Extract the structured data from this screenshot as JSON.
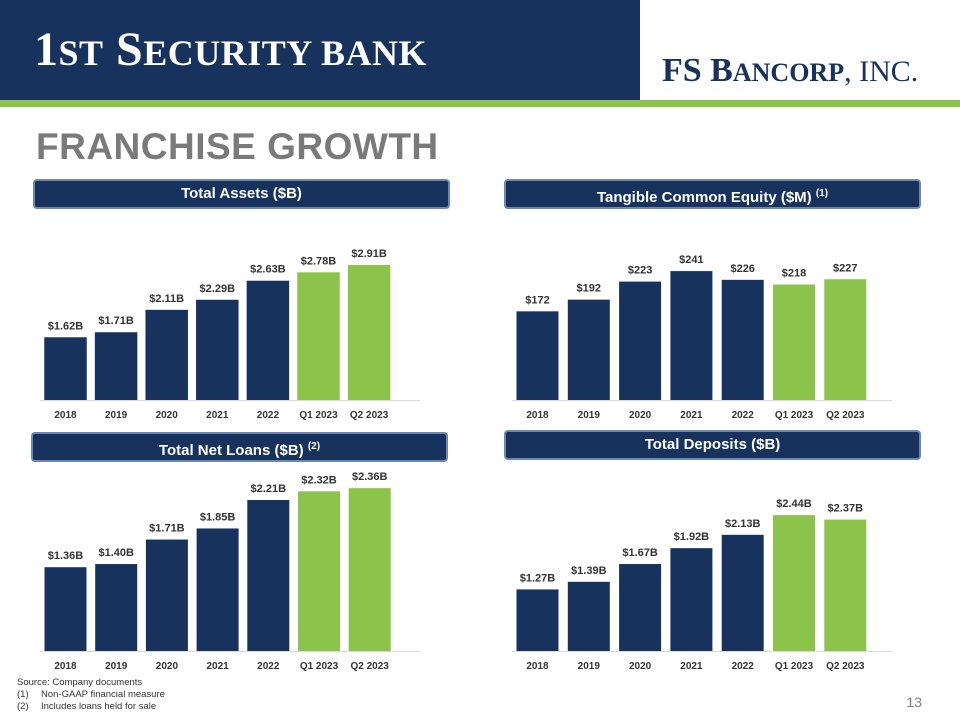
{
  "header": {
    "bank_logo_big1": "1",
    "bank_logo_small1": "ST",
    "bank_logo_big2": " S",
    "bank_logo_small2": "ECURITY",
    "bank_logo_small3": " BANK",
    "fs_logo_big1": "FS B",
    "fs_logo_small1": "ANCORP",
    "fs_logo_rest": ", INC.",
    "colors": {
      "navy": "#17325c",
      "green": "#8cc34a",
      "border": "#6f88b0"
    }
  },
  "page_title": "FRANCHISE GROWTH",
  "chart_data": [
    {
      "type": "bar",
      "title": "Total Assets ($B)",
      "title_footnote": "",
      "categories": [
        "2018",
        "2019",
        "2020",
        "2021",
        "2022",
        "Q1 2023",
        "Q2 2023"
      ],
      "values": [
        1.62,
        1.71,
        2.11,
        2.29,
        2.63,
        2.78,
        2.91
      ],
      "labels": [
        "$1.62B",
        "$1.71B",
        "$2.11B",
        "$2.29B",
        "$2.63B",
        "$2.78B",
        "$2.91B"
      ],
      "colors": [
        "#17325c",
        "#17325c",
        "#17325c",
        "#17325c",
        "#17325c",
        "#8cc34a",
        "#8cc34a"
      ],
      "ylim": [
        0.5,
        3.0
      ],
      "xlabel": "",
      "ylabel": ""
    },
    {
      "type": "bar",
      "title": "Tangible Common Equity ($M)",
      "title_footnote": "(1)",
      "categories": [
        "2018",
        "2019",
        "2020",
        "2021",
        "2022",
        "Q1 2023",
        "Q2 2023"
      ],
      "values": [
        172,
        192,
        223,
        241,
        226,
        218,
        227
      ],
      "labels": [
        "$172",
        "$192",
        "$223",
        "$241",
        "$226",
        "$218",
        "$227"
      ],
      "colors": [
        "#17325c",
        "#17325c",
        "#17325c",
        "#17325c",
        "#17325c",
        "#8cc34a",
        "#8cc34a"
      ],
      "ylim": [
        20,
        260
      ],
      "xlabel": "",
      "ylabel": ""
    },
    {
      "type": "bar",
      "title": "Total Net Loans ($B)",
      "title_footnote": "(2)",
      "categories": [
        "2018",
        "2019",
        "2020",
        "2021",
        "2022",
        "Q1 2023",
        "Q2 2023"
      ],
      "values": [
        1.36,
        1.4,
        1.71,
        1.85,
        2.21,
        2.32,
        2.36
      ],
      "labels": [
        "$1.36B",
        "$1.40B",
        "$1.71B",
        "$1.85B",
        "$2.21B",
        "$2.32B",
        "$2.36B"
      ],
      "colors": [
        "#17325c",
        "#17325c",
        "#17325c",
        "#17325c",
        "#17325c",
        "#8cc34a",
        "#8cc34a"
      ],
      "ylim": [
        0.3,
        2.4
      ],
      "xlabel": "",
      "ylabel": ""
    },
    {
      "type": "bar",
      "title": "Total Deposits ($B)",
      "title_footnote": "",
      "categories": [
        "2018",
        "2019",
        "2020",
        "2021",
        "2022",
        "Q1 2023",
        "Q2 2023"
      ],
      "values": [
        1.27,
        1.39,
        1.67,
        1.92,
        2.13,
        2.44,
        2.37
      ],
      "labels": [
        "$1.27B",
        "$1.39B",
        "$1.67B",
        "$1.92B",
        "$2.13B",
        "$2.44B",
        "$2.37B"
      ],
      "colors": [
        "#17325c",
        "#17325c",
        "#17325c",
        "#17325c",
        "#17325c",
        "#8cc34a",
        "#8cc34a"
      ],
      "ylim": [
        0.3,
        2.6
      ],
      "xlabel": "",
      "ylabel": ""
    }
  ],
  "footer": {
    "source": "Source: Company documents",
    "notes": [
      {
        "num": "(1)",
        "text": "Non-GAAP financial measure"
      },
      {
        "num": "(2)",
        "text": "Includes loans held for sale"
      }
    ]
  },
  "page_number": "13"
}
